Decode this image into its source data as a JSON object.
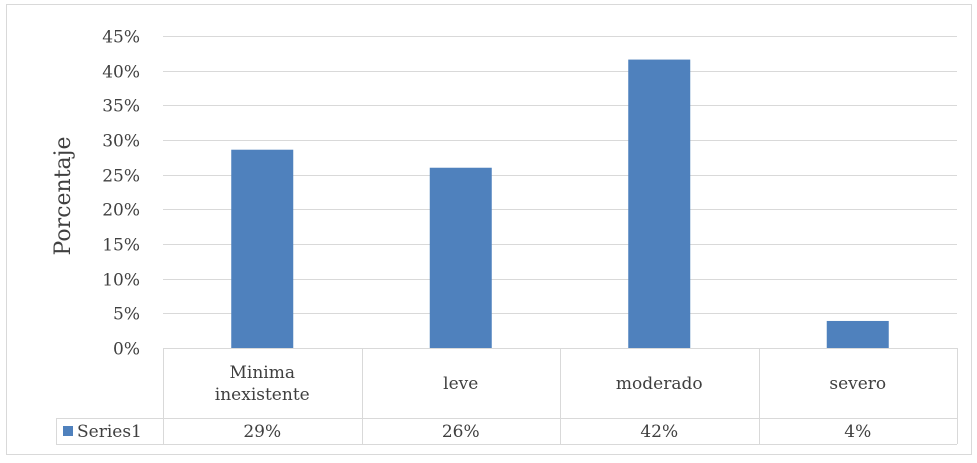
{
  "chart_data": {
    "type": "bar",
    "title": "",
    "xlabel": "",
    "ylabel": "Porcentaje",
    "ylim": [
      0,
      45
    ],
    "y_ticks": [
      "0%",
      "5%",
      "10%",
      "15%",
      "20%",
      "25%",
      "30%",
      "35%",
      "40%",
      "45%"
    ],
    "y_tick_values": [
      0,
      5,
      10,
      15,
      20,
      25,
      30,
      35,
      40,
      45
    ],
    "categories": [
      [
        "Minima",
        "inexistente"
      ],
      [
        "leve"
      ],
      [
        "moderado"
      ],
      [
        "severo"
      ]
    ],
    "series": [
      {
        "name": "Series1",
        "values": [
          28.6,
          26.0,
          41.6,
          3.9
        ],
        "labels": [
          "29%",
          "26%",
          "42%",
          "4%"
        ],
        "color": "#4f81bd"
      }
    ],
    "grid": true,
    "legend": "data-table"
  },
  "colors": {
    "bar": "#4f81bd",
    "grid": "#d9d9d9",
    "text": "#404040",
    "border": "#d9d9d9"
  }
}
